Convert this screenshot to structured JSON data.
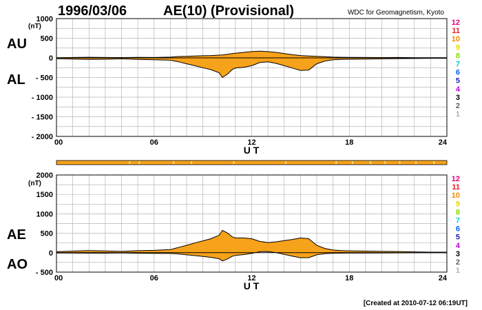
{
  "header": {
    "date": "1996/03/06",
    "title": "AE(10) (Provisional)",
    "source": "WDC for Geomagnetism, Kyoto"
  },
  "footer": {
    "created": "[Created at 2010-07-12 06:19UT]"
  },
  "colors": {
    "fill": "#f7a21b",
    "line": "#000000",
    "grid": "#b5b5b5",
    "strip": "#f7a21b",
    "strip_gap": "#ffe08a"
  },
  "station_scale": {
    "labels": [
      "12",
      "11",
      "10",
      "9",
      "8",
      "7",
      "6",
      "5",
      "4",
      "3",
      "2",
      "1"
    ],
    "colors": [
      "#e8007a",
      "#e8192c",
      "#f08a00",
      "#e6d800",
      "#7fe000",
      "#00d2d2",
      "#0060ff",
      "#2020b0",
      "#c000e0",
      "#000000",
      "#606060",
      "#b0b0b0"
    ]
  },
  "data_strip": {
    "gap_hours": [
      4.5,
      5.1,
      7.2,
      8.3,
      10.9,
      14.1,
      17.2,
      18.2,
      19.3,
      20.2,
      21.1,
      22.1,
      23.2
    ]
  },
  "chart_data": [
    {
      "type": "area",
      "unit": "(nT)",
      "xlabel": "U T",
      "ylim": [
        -2000,
        1000
      ],
      "xlim": [
        0,
        24
      ],
      "xticks": [
        "00",
        "06",
        "12",
        "18",
        "24"
      ],
      "yticks": [
        "1000",
        "500",
        "0",
        "- 500",
        "- 1000",
        "- 1500",
        "- 2000"
      ],
      "series_labels": [
        "AU",
        "AL"
      ],
      "x": [
        0,
        1,
        2,
        3,
        4,
        5,
        6,
        7,
        7.5,
        8,
        8.5,
        9,
        9.5,
        10,
        10.2,
        10.5,
        10.8,
        11,
        11.5,
        12,
        12.5,
        13,
        13.5,
        14,
        14.5,
        15,
        15.5,
        16,
        16.5,
        17,
        17.5,
        18,
        19,
        20,
        21,
        22,
        23,
        24
      ],
      "AU": [
        5,
        10,
        15,
        10,
        8,
        12,
        10,
        20,
        35,
        40,
        50,
        55,
        60,
        70,
        75,
        90,
        110,
        120,
        140,
        160,
        170,
        160,
        140,
        110,
        80,
        60,
        50,
        40,
        30,
        20,
        15,
        12,
        10,
        8,
        10,
        6,
        5,
        5
      ],
      "AL": [
        -20,
        -30,
        -40,
        -35,
        -25,
        -40,
        -50,
        -60,
        -100,
        -150,
        -200,
        -250,
        -300,
        -380,
        -500,
        -420,
        -300,
        -260,
        -240,
        -200,
        -120,
        -100,
        -140,
        -200,
        -260,
        -320,
        -310,
        -150,
        -80,
        -50,
        -40,
        -35,
        -30,
        -25,
        -20,
        -15,
        -10,
        -10
      ],
      "grid": true
    },
    {
      "type": "area",
      "unit": "(nT)",
      "xlabel": "U T",
      "ylim": [
        -500,
        2000
      ],
      "xlim": [
        0,
        24
      ],
      "xticks": [
        "00",
        "06",
        "12",
        "18",
        "24"
      ],
      "yticks": [
        "2000",
        "1500",
        "1000",
        "500",
        "0",
        "- 500"
      ],
      "series_labels": [
        "AE",
        "AO"
      ],
      "x": [
        0,
        1,
        2,
        3,
        4,
        5,
        6,
        7,
        7.5,
        8,
        8.5,
        9,
        9.5,
        10,
        10.2,
        10.5,
        10.8,
        11,
        11.5,
        12,
        12.5,
        13,
        13.5,
        14,
        14.5,
        15,
        15.5,
        16,
        16.5,
        17,
        17.5,
        18,
        19,
        20,
        21,
        22,
        23,
        24
      ],
      "AE": [
        25,
        40,
        55,
        45,
        33,
        52,
        60,
        80,
        135,
        190,
        250,
        305,
        360,
        450,
        575,
        510,
        410,
        380,
        380,
        360,
        290,
        260,
        280,
        310,
        340,
        380,
        360,
        190,
        110,
        70,
        55,
        47,
        40,
        33,
        30,
        21,
        15,
        15
      ],
      "AO": [
        -8,
        -10,
        -12,
        -12,
        -8,
        -14,
        -20,
        -20,
        -32,
        -55,
        -75,
        -97,
        -120,
        -155,
        -212,
        -165,
        -95,
        -70,
        -50,
        -20,
        25,
        30,
        0,
        -45,
        -90,
        -130,
        -130,
        -55,
        -25,
        -15,
        -12,
        -11,
        -10,
        -8,
        -5,
        -4,
        -2,
        -2
      ],
      "grid": true
    }
  ]
}
